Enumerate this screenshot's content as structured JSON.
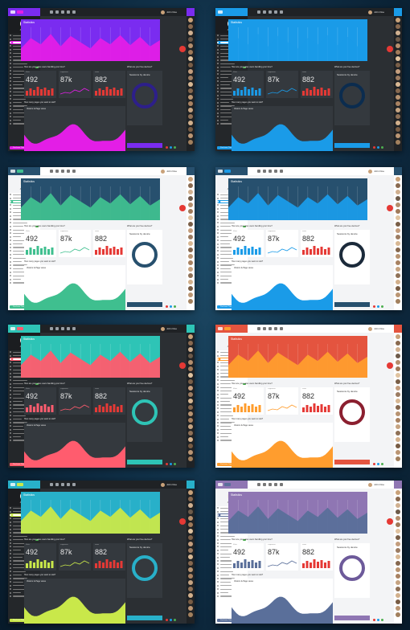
{
  "screens": [
    {
      "theme": "dark",
      "accent": "#e31ee6",
      "accent2": "#7a2cf0",
      "fab": "#e53935",
      "barcolor": "#e53935",
      "donut": "#2d1f8a",
      "btntext": "Explore"
    },
    {
      "theme": "dark",
      "accent": "#1a9be8",
      "accent2": "#1a9be8",
      "fab": "#e53935",
      "barcolor": "#1a9be8",
      "donut": "#0b2c4f",
      "btntext": "Explore"
    },
    {
      "theme": "light",
      "accent": "#3fbf8f",
      "accent2": "#27506e",
      "fab": "#e53935",
      "barcolor": "#3fbf8f",
      "donut": "#27506e",
      "btntext": "Explore"
    },
    {
      "theme": "light",
      "accent": "#1a9be8",
      "accent2": "#27506e",
      "fab": "#e53935",
      "barcolor": "#1a9be8",
      "donut": "#1b2a3a",
      "btntext": "Explore"
    },
    {
      "theme": "dark",
      "accent": "#ff5c6e",
      "accent2": "#2ec4b6",
      "fab": "#e53935",
      "barcolor": "#ff5c6e",
      "donut": "#2ec4b6",
      "btntext": "Explore"
    },
    {
      "theme": "light",
      "accent": "#ff9d2e",
      "accent2": "#e4543f",
      "fab": "#e53935",
      "barcolor": "#ff9d2e",
      "donut": "#8b1f2f",
      "btntext": "Explore"
    },
    {
      "theme": "dark",
      "accent": "#c9e84a",
      "accent2": "#28b0c9",
      "fab": "#e53935",
      "barcolor": "#c9e84a",
      "donut": "#28b0c9",
      "btntext": "Explore"
    },
    {
      "theme": "light",
      "accent": "#5a6f9a",
      "accent2": "#8f76b3",
      "fab": "#e53935",
      "barcolor": "#5a6f9a",
      "donut": "#6d5a9a",
      "btntext": "Explore"
    }
  ],
  "labels": {
    "hero_title": "Statistics",
    "q1": "How are your sales users handling your time?",
    "q2": "What are your free devices?",
    "q3": "How many pages you want to visit?",
    "donut_title": "Sessions by device",
    "bottom_title": "Visitors & Page views",
    "stat1_value": "492",
    "stat2_value": "87k",
    "stat3_value": "882",
    "stat1_cap": "Visits",
    "stat2_cap": "Pageviews",
    "stat3_cap": "Sales",
    "user_name": "John Doe",
    "foot_btn": "Purchase Theme"
  }
}
